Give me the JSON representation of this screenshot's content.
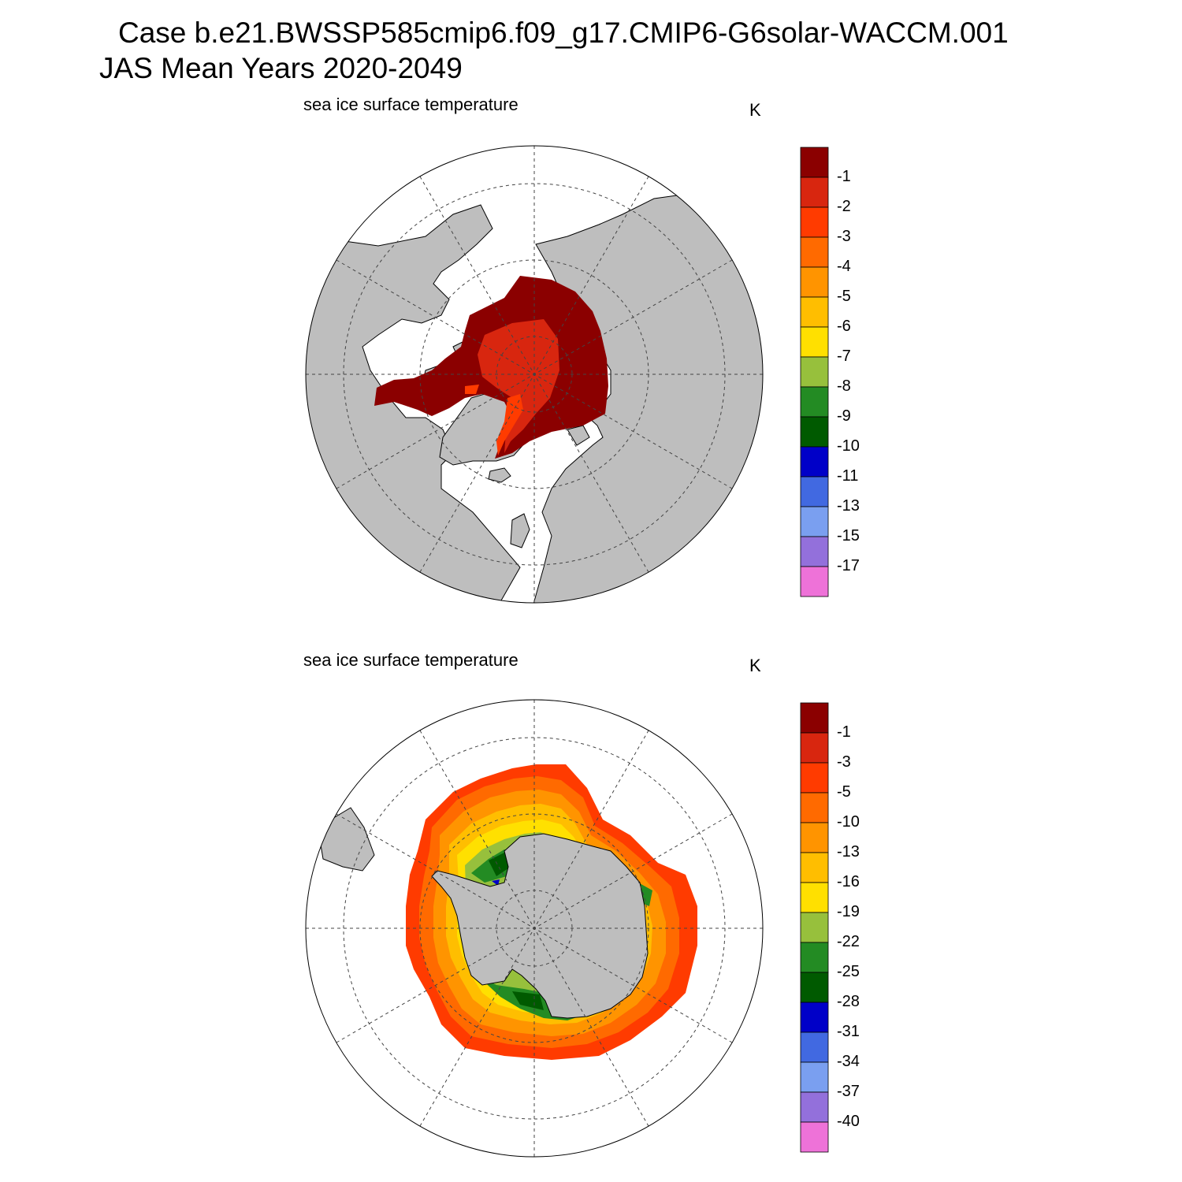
{
  "title": {
    "line1": "Case b.e21.BWSSP585cmip6.f09_g17.CMIP6-G6solar-WACCM.001",
    "line2": "JAS Mean   Years 2020-2049"
  },
  "colors": {
    "land": "#bebebe",
    "grid": "#444444",
    "outline": "#000000"
  },
  "panels": [
    {
      "id": "north",
      "hemisphere": "Arctic",
      "subtitle": "sea ice surface temperature",
      "units": "K",
      "colorbar": {
        "colors": [
          "#8b0000",
          "#d8260f",
          "#ff3b00",
          "#ff6a00",
          "#ff9400",
          "#ffbe00",
          "#ffe000",
          "#97c03c",
          "#238b23",
          "#005a00",
          "#0000c8",
          "#4169e1",
          "#7a9ff0",
          "#9370db",
          "#ee72d8"
        ],
        "labels": [
          "-1",
          "-2",
          "-3",
          "-4",
          "-5",
          "-6",
          "-7",
          "-8",
          "-9",
          "-10",
          "-11",
          "-13",
          "-15",
          "-17"
        ]
      }
    },
    {
      "id": "south",
      "hemisphere": "Antarctic",
      "subtitle": "sea ice surface temperature",
      "units": "K",
      "colorbar": {
        "colors": [
          "#8b0000",
          "#d8260f",
          "#ff3b00",
          "#ff6a00",
          "#ff9400",
          "#ffbe00",
          "#ffe000",
          "#97c03c",
          "#238b23",
          "#005a00",
          "#0000c8",
          "#4169e1",
          "#7a9ff0",
          "#9370db",
          "#ee72d8"
        ],
        "labels": [
          "-1",
          "-3",
          "-5",
          "-10",
          "-13",
          "-16",
          "-19",
          "-22",
          "-25",
          "-28",
          "-31",
          "-34",
          "-37",
          "-40"
        ]
      }
    }
  ]
}
